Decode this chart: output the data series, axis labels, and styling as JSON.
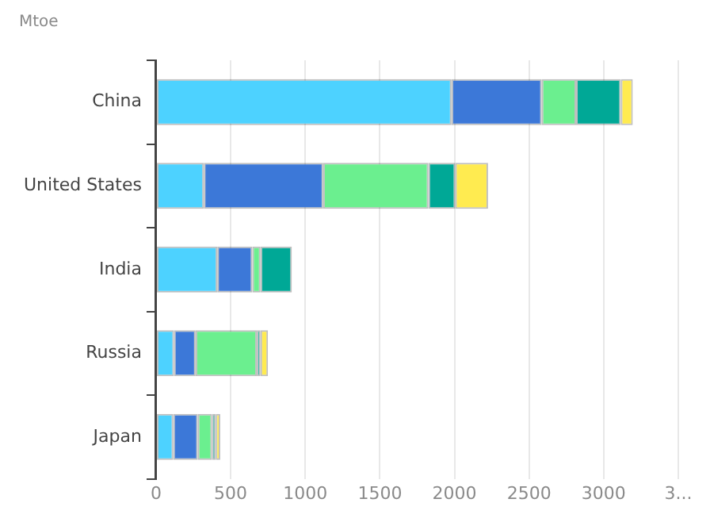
{
  "chart_data": {
    "type": "bar",
    "orientation": "horizontal",
    "stacked": true,
    "title": "Mtoe",
    "categories": [
      "China",
      "United States",
      "India",
      "Russia",
      "Japan"
    ],
    "series": [
      {
        "color": "#4dd2ff",
        "values": [
          1980,
          320,
          410,
          120,
          115
        ]
      },
      {
        "color": "#3c78d8",
        "values": [
          605,
          800,
          235,
          145,
          165
        ]
      },
      {
        "color": "#6bef8f",
        "values": [
          230,
          705,
          55,
          410,
          95
        ]
      },
      {
        "color": "#00a896",
        "values": [
          300,
          180,
          210,
          25,
          25
        ]
      },
      {
        "color": "#ffeb50",
        "values": [
          80,
          220,
          0,
          50,
          30
        ]
      }
    ],
    "xlim": [
      0,
      3500
    ],
    "xticks": [
      0,
      500,
      1000,
      1500,
      2000,
      2500,
      3000,
      {
        "value": 3500,
        "label": "3..."
      }
    ],
    "grid": "x",
    "legend": false
  }
}
